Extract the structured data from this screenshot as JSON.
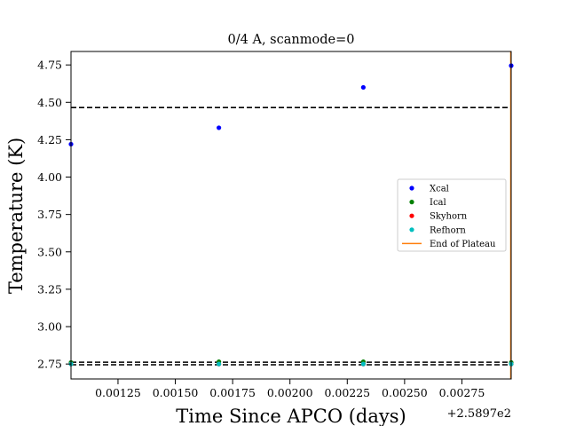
{
  "chart_data": {
    "type": "scatter",
    "title": "0/4 A, scanmode=0",
    "xlabel": "Time Since APCO (days)",
    "ylabel": "Temperature (K)",
    "x_offset_label": "+2.5897e2",
    "xlim": [
      0.001045,
      0.002965
    ],
    "ylim": [
      2.65,
      4.84
    ],
    "x_ticks": [
      0.00125,
      0.0015,
      0.00175,
      0.002,
      0.00225,
      0.0025,
      0.00275
    ],
    "x_tick_labels": [
      "0.00125",
      "0.00150",
      "0.00175",
      "0.00200",
      "0.00225",
      "0.00250",
      "0.00275"
    ],
    "y_ticks": [
      2.75,
      3.0,
      3.25,
      3.5,
      3.75,
      4.0,
      4.25,
      4.5,
      4.75
    ],
    "y_tick_labels": [
      "2.75",
      "3.00",
      "3.25",
      "3.50",
      "3.75",
      "4.00",
      "4.25",
      "4.50",
      "4.75"
    ],
    "grid": false,
    "legend_position": "center-right",
    "series": [
      {
        "name": "Xcal",
        "color": "#0000ff",
        "x": [
          0.001045,
          0.00169,
          0.00232,
          0.002965
        ],
        "y": [
          4.22,
          4.33,
          4.6,
          4.745
        ]
      },
      {
        "name": "Ical",
        "color": "#008000",
        "x": [
          0.001045,
          0.00169,
          0.00232,
          0.002965
        ],
        "y": [
          2.76,
          2.765,
          2.765,
          2.76
        ]
      },
      {
        "name": "Skyhorn",
        "color": "#ff0000",
        "x": [
          0.001045,
          0.00169,
          0.00232,
          0.002965
        ],
        "y": [
          2.75,
          2.75,
          2.75,
          2.75
        ]
      },
      {
        "name": "Refhorn",
        "color": "#00bfbf",
        "x": [
          0.001045,
          0.00169,
          0.00232,
          0.002965
        ],
        "y": [
          2.75,
          2.75,
          2.75,
          2.75
        ]
      }
    ],
    "end_of_plateau": {
      "name": "End of Plateau",
      "color": "#ff7f0e",
      "x": 0.002965
    },
    "reference_lines": [
      {
        "y": 4.465,
        "style": "dashed",
        "color": "#000000"
      },
      {
        "y": 2.762,
        "style": "dashed",
        "color": "#000000"
      },
      {
        "y": 2.745,
        "style": "dashed",
        "color": "#000000"
      }
    ]
  }
}
